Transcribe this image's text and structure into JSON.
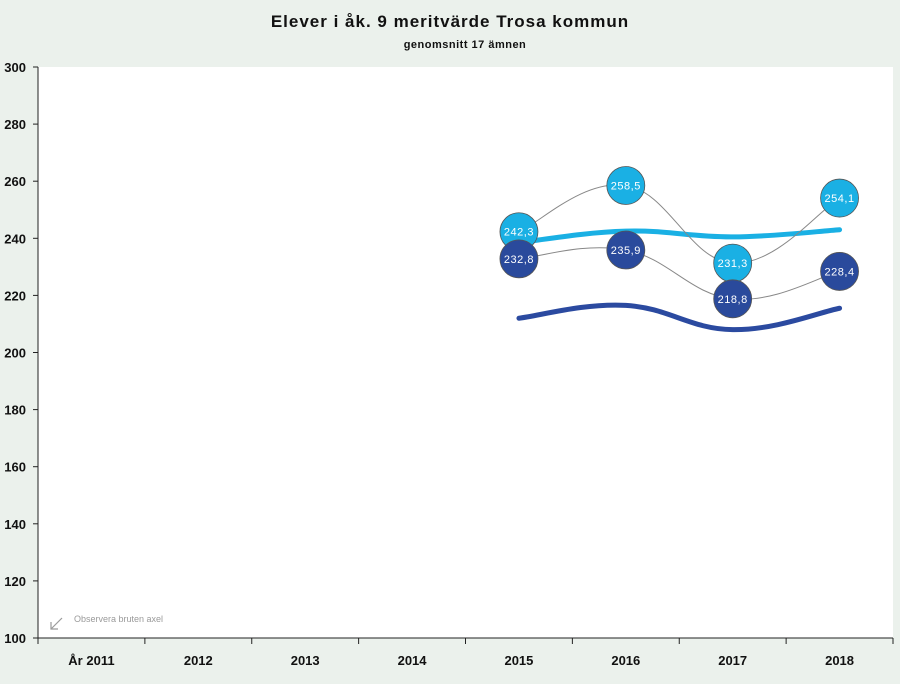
{
  "chart_data": {
    "type": "line",
    "title": "Elever i åk. 9 meritvärde Trosa kommun",
    "subtitle": "genomsnitt 17 ämnen",
    "categories": [
      "År 2011",
      "2012",
      "2013",
      "2014",
      "2015",
      "2016",
      "2017",
      "2018"
    ],
    "ylim": [
      100,
      300
    ],
    "yticks": [
      100,
      120,
      140,
      160,
      180,
      200,
      220,
      240,
      260,
      280,
      300
    ],
    "grid": false,
    "note": "Observera bruten axel",
    "series": [
      {
        "values": [
          null,
          null,
          null,
          null,
          242.3,
          258.5,
          231.3,
          254.1
        ],
        "labels": [
          "",
          "",
          "",
          "",
          "242,3",
          "258,5",
          "231,3",
          "254,1"
        ],
        "marker_color": "#1ab0e4",
        "line_color": "#888888"
      },
      {
        "values": [
          null,
          null,
          null,
          null,
          232.8,
          235.9,
          218.8,
          228.4
        ],
        "labels": [
          "",
          "",
          "",
          "",
          "232,8",
          "235,9",
          "218,8",
          "228,4"
        ],
        "marker_color": "#2a4a9c",
        "line_color": "#888888"
      },
      {
        "values": [
          null,
          null,
          null,
          null,
          238.5,
          242.5,
          240.5,
          243
        ],
        "line_color": "#1ab0e4",
        "style": "thick"
      },
      {
        "values": [
          null,
          null,
          null,
          null,
          212,
          216.5,
          208,
          215.5
        ],
        "line_color": "#2b4aa0",
        "style": "thick"
      }
    ]
  }
}
